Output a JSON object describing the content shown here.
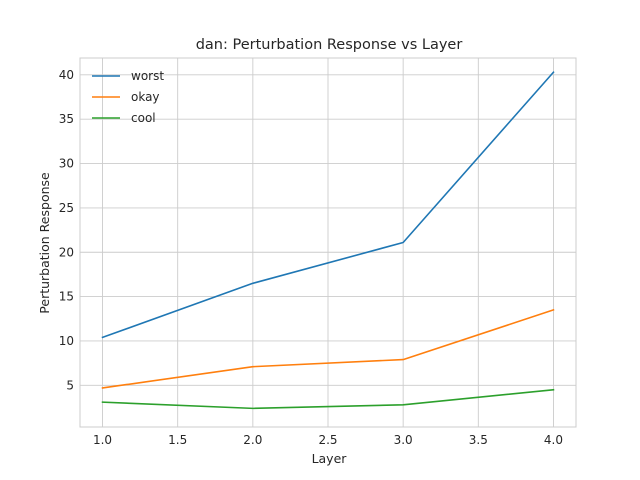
{
  "chart_data": {
    "type": "line",
    "title": "dan: Perturbation Response vs Layer",
    "xlabel": "Layer",
    "ylabel": "Perturbation Response",
    "xlim": [
      0.85,
      4.15
    ],
    "ylim": [
      0.3,
      41.9
    ],
    "xticks": [
      1.0,
      1.5,
      2.0,
      2.5,
      3.0,
      3.5,
      4.0
    ],
    "xtick_labels": [
      "1.0",
      "1.5",
      "2.0",
      "2.5",
      "3.0",
      "3.5",
      "4.0"
    ],
    "yticks": [
      5,
      10,
      15,
      20,
      25,
      30,
      35,
      40
    ],
    "ytick_labels": [
      "5",
      "10",
      "15",
      "20",
      "25",
      "30",
      "35",
      "40"
    ],
    "grid": true,
    "legend_position": "top-left",
    "x": [
      1,
      2,
      3,
      4
    ],
    "series": [
      {
        "name": "worst",
        "color": "#1f77b4",
        "values": [
          10.4,
          16.5,
          21.1,
          40.3
        ]
      },
      {
        "name": "okay",
        "color": "#ff7f0e",
        "values": [
          4.7,
          7.1,
          7.9,
          13.5
        ]
      },
      {
        "name": "cool",
        "color": "#2ca02c",
        "values": [
          3.1,
          2.4,
          2.8,
          4.5
        ]
      }
    ]
  }
}
